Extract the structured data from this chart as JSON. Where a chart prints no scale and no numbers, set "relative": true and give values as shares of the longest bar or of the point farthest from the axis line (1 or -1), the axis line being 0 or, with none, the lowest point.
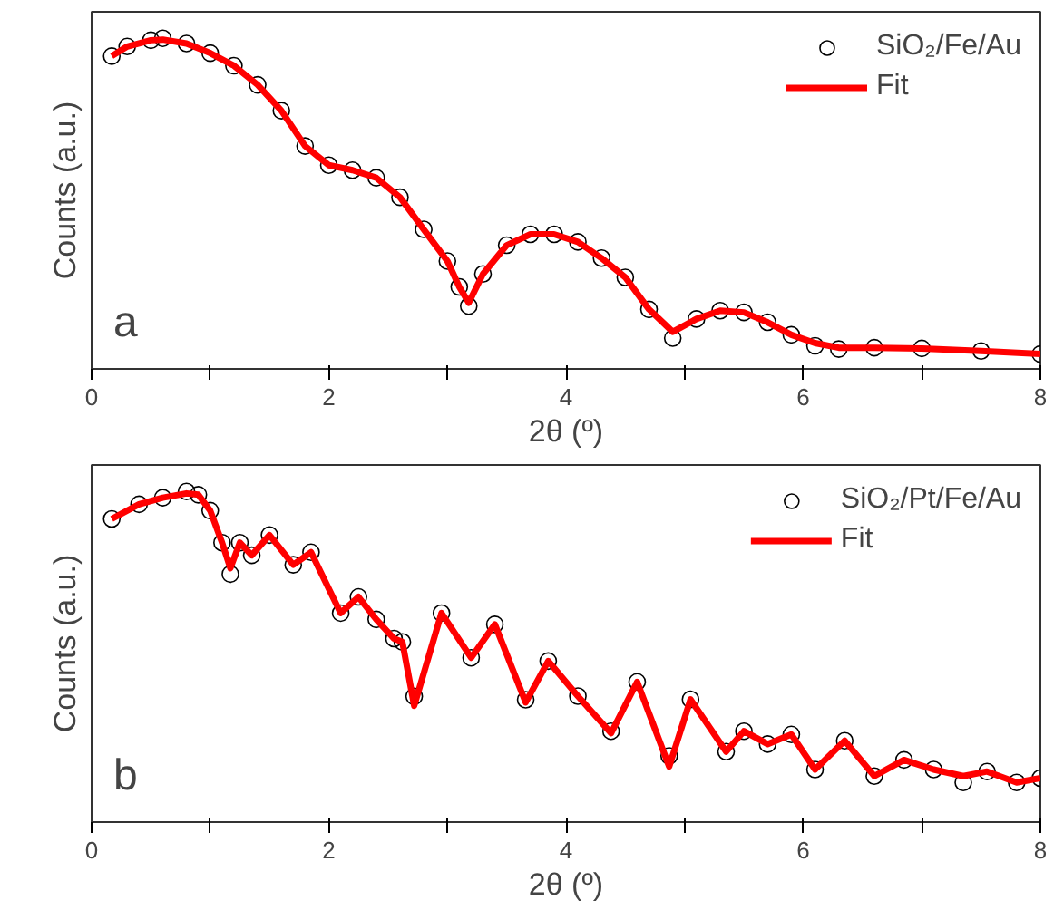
{
  "chart_data": [
    {
      "type": "line",
      "relative": true,
      "xlabel": "2θ (º)",
      "ylabel": "Counts (a.u.)",
      "annotations": [
        "a"
      ],
      "xlim": [
        0,
        8
      ],
      "xticks": [
        0,
        {
          "value": 1,
          "label": null
        },
        2,
        {
          "value": 3,
          "label": null
        },
        4,
        {
          "value": 5,
          "label": null
        },
        6,
        {
          "value": 7,
          "label": null
        },
        8
      ],
      "legend": "top right",
      "grid": false,
      "series": [
        {
          "name": "SiO₂/Fe/Au",
          "type": "scatter",
          "marker": "circle",
          "color": "#000000",
          "x": [
            0.17,
            0.3,
            0.5,
            0.6,
            0.8,
            1.0,
            1.2,
            1.4,
            1.6,
            1.8,
            2.0,
            2.2,
            2.4,
            2.6,
            2.8,
            3.0,
            3.1,
            3.18,
            3.3,
            3.5,
            3.7,
            3.9,
            4.1,
            4.3,
            4.5,
            4.7,
            4.9,
            5.1,
            5.3,
            5.5,
            5.7,
            5.9,
            6.1,
            6.3,
            6.6,
            7.0,
            7.5,
            8.0
          ],
          "values": [
            0.946,
            0.975,
            0.994,
            1.0,
            0.984,
            0.955,
            0.917,
            0.859,
            0.781,
            0.674,
            0.616,
            0.601,
            0.578,
            0.519,
            0.422,
            0.326,
            0.248,
            0.19,
            0.287,
            0.374,
            0.407,
            0.407,
            0.384,
            0.335,
            0.277,
            0.18,
            0.093,
            0.151,
            0.176,
            0.171,
            0.141,
            0.103,
            0.07,
            0.06,
            0.064,
            0.062,
            0.054,
            0.045
          ]
        },
        {
          "name": "Fit",
          "type": "line",
          "color": "#ff0000",
          "line_style": "solid",
          "x": [
            0.17,
            0.3,
            0.5,
            0.6,
            0.8,
            1.0,
            1.2,
            1.4,
            1.6,
            1.8,
            2.0,
            2.2,
            2.4,
            2.6,
            2.8,
            3.0,
            3.1,
            3.18,
            3.3,
            3.5,
            3.7,
            3.9,
            4.1,
            4.3,
            4.5,
            4.7,
            4.9,
            5.1,
            5.3,
            5.5,
            5.7,
            5.9,
            6.1,
            6.3,
            6.6,
            7.0,
            7.5,
            8.0
          ],
          "values": [
            0.946,
            0.975,
            0.994,
            0.996,
            0.984,
            0.955,
            0.917,
            0.859,
            0.781,
            0.674,
            0.616,
            0.601,
            0.578,
            0.519,
            0.422,
            0.326,
            0.248,
            0.2,
            0.287,
            0.374,
            0.407,
            0.407,
            0.384,
            0.335,
            0.277,
            0.18,
            0.112,
            0.151,
            0.176,
            0.171,
            0.141,
            0.103,
            0.078,
            0.064,
            0.064,
            0.062,
            0.054,
            0.045
          ]
        }
      ]
    },
    {
      "type": "line",
      "relative": true,
      "xlabel": "2θ (º)",
      "ylabel": "Counts (a.u.)",
      "annotations": [
        "b"
      ],
      "xlim": [
        0,
        8
      ],
      "xticks": [
        0,
        {
          "value": 1,
          "label": null
        },
        2,
        {
          "value": 3,
          "label": null
        },
        4,
        {
          "value": 5,
          "label": null
        },
        6,
        {
          "value": 7,
          "label": null
        },
        8
      ],
      "legend": "top right",
      "grid": false,
      "series": [
        {
          "name": "SiO₂/Pt/Fe/Au",
          "type": "scatter",
          "marker": "circle",
          "color": "#000000",
          "x": [
            0.17,
            0.4,
            0.6,
            0.8,
            0.9,
            1.0,
            1.1,
            1.17,
            1.25,
            1.35,
            1.5,
            1.7,
            1.85,
            2.1,
            2.25,
            2.4,
            2.55,
            2.62,
            2.72,
            2.95,
            3.2,
            3.4,
            3.66,
            3.85,
            4.1,
            4.38,
            4.6,
            4.87,
            5.05,
            5.35,
            5.5,
            5.7,
            5.9,
            6.1,
            6.35,
            6.6,
            6.85,
            7.1,
            7.35,
            7.55,
            7.8,
            8.0
          ],
          "values": [
            0.917,
            0.961,
            0.981,
            1.0,
            0.99,
            0.942,
            0.845,
            0.75,
            0.845,
            0.807,
            0.868,
            0.778,
            0.816,
            0.632,
            0.681,
            0.613,
            0.555,
            0.545,
            0.38,
            0.632,
            0.497,
            0.598,
            0.37,
            0.487,
            0.381,
            0.275,
            0.424,
            0.2,
            0.371,
            0.213,
            0.275,
            0.236,
            0.265,
            0.159,
            0.246,
            0.139,
            0.188,
            0.159,
            0.12,
            0.153,
            0.12,
            0.133
          ]
        },
        {
          "name": "Fit",
          "type": "line",
          "color": "#ff0000",
          "line_style": "solid",
          "x": [
            0.17,
            0.4,
            0.6,
            0.8,
            0.9,
            1.0,
            1.1,
            1.17,
            1.25,
            1.35,
            1.5,
            1.7,
            1.85,
            2.1,
            2.25,
            2.4,
            2.55,
            2.62,
            2.72,
            2.95,
            3.2,
            3.4,
            3.66,
            3.85,
            4.1,
            4.38,
            4.6,
            4.87,
            5.05,
            5.35,
            5.5,
            5.7,
            5.9,
            6.1,
            6.35,
            6.6,
            6.85,
            7.1,
            7.35,
            7.55,
            7.8,
            8.0
          ],
          "values": [
            0.917,
            0.961,
            0.981,
            0.994,
            0.99,
            0.942,
            0.845,
            0.768,
            0.845,
            0.807,
            0.868,
            0.778,
            0.816,
            0.632,
            0.681,
            0.613,
            0.555,
            0.545,
            0.352,
            0.632,
            0.497,
            0.598,
            0.362,
            0.487,
            0.381,
            0.269,
            0.424,
            0.168,
            0.371,
            0.213,
            0.275,
            0.236,
            0.265,
            0.159,
            0.246,
            0.139,
            0.188,
            0.159,
            0.139,
            0.153,
            0.12,
            0.133
          ]
        }
      ]
    }
  ]
}
